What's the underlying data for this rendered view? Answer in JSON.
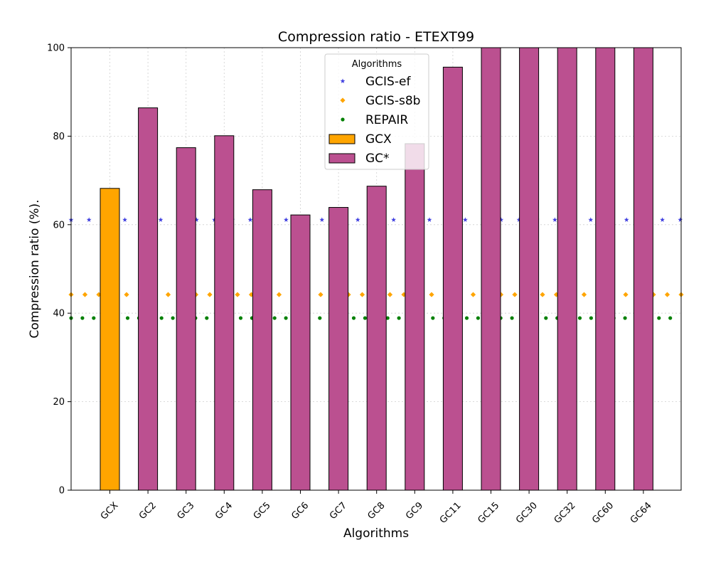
{
  "chart_data": {
    "type": "bar",
    "title": "Compression ratio -  ETEXT99",
    "xlabel": "Algorithms",
    "ylabel": "Compression ratio (%).",
    "ylim": [
      0,
      100
    ],
    "yticks": [
      0,
      20,
      40,
      60,
      80,
      100
    ],
    "grid": true,
    "categories": [
      "GCX",
      "GC2",
      "GC3",
      "GC4",
      "GC5",
      "GC6",
      "GC7",
      "GC8",
      "GC9",
      "GC11",
      "GC15",
      "GC30",
      "GC32",
      "GC60",
      "GC64"
    ],
    "bar_series": [
      {
        "name": "GCX",
        "color": "#ffa500",
        "values": [
          68.2,
          null,
          null,
          null,
          null,
          null,
          null,
          null,
          null,
          null,
          null,
          null,
          null,
          null,
          null
        ]
      },
      {
        "name": "GC*",
        "color": "#bb5090",
        "values": [
          null,
          86.4,
          77.4,
          80.1,
          67.9,
          62.2,
          63.9,
          68.7,
          78.3,
          95.6,
          100,
          100,
          100,
          100,
          100
        ]
      }
    ],
    "reference_lines": [
      {
        "name": "GCIS-ef",
        "value": 61.1,
        "color": "#4040e0",
        "marker": "star"
      },
      {
        "name": "GCIS-s8b",
        "value": 44.2,
        "color": "#ffa500",
        "marker": "diamond"
      },
      {
        "name": "REPAIR",
        "value": 38.9,
        "color": "#008000",
        "marker": "circle"
      }
    ],
    "legend": {
      "title": "Algorithms",
      "position": "top-center",
      "entries": [
        "GCIS-ef",
        "GCIS-s8b",
        "REPAIR",
        "GCX",
        "GC*"
      ]
    }
  }
}
